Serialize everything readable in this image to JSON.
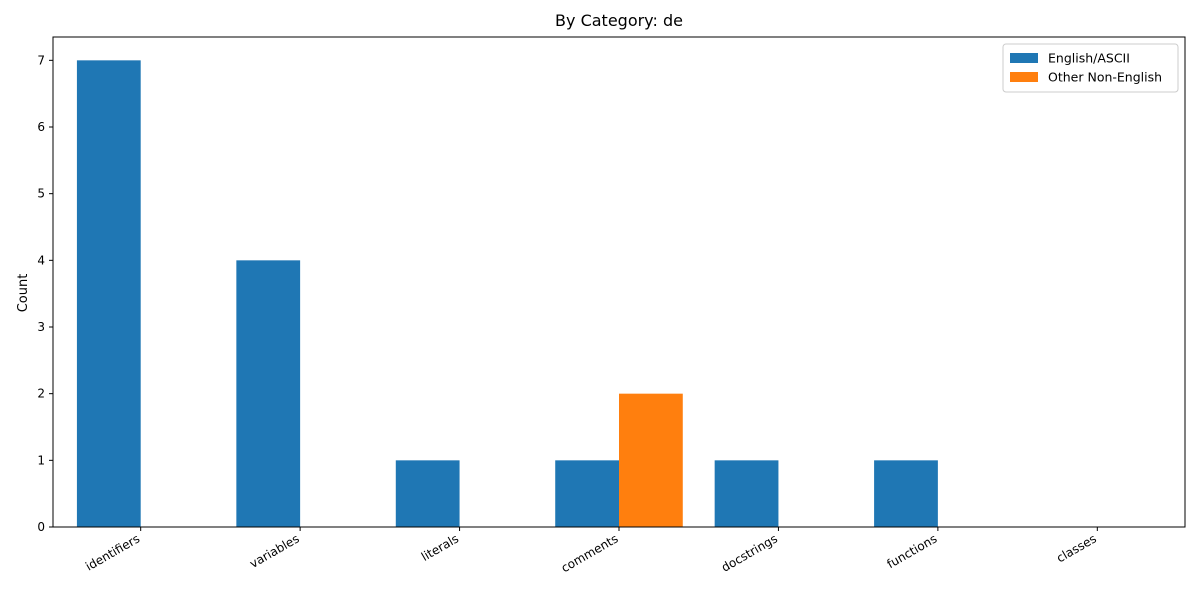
{
  "chart_data": {
    "type": "bar",
    "title": "By Category: de",
    "xlabel": "",
    "ylabel": "Count",
    "categories": [
      "identifiers",
      "variables",
      "literals",
      "comments",
      "docstrings",
      "functions",
      "classes"
    ],
    "series": [
      {
        "name": "English/ASCII",
        "color": "#1f77b4",
        "values": [
          7,
          4,
          1,
          1,
          1,
          1,
          0
        ]
      },
      {
        "name": "Other Non-English",
        "color": "#ff7f0e",
        "values": [
          0,
          0,
          0,
          2,
          0,
          0,
          0
        ]
      }
    ],
    "ylim": [
      0,
      7.35
    ],
    "yticks": [
      "0",
      "1",
      "2",
      "3",
      "4",
      "5",
      "6",
      "7"
    ],
    "grid": false,
    "legend_position": "top-right"
  }
}
